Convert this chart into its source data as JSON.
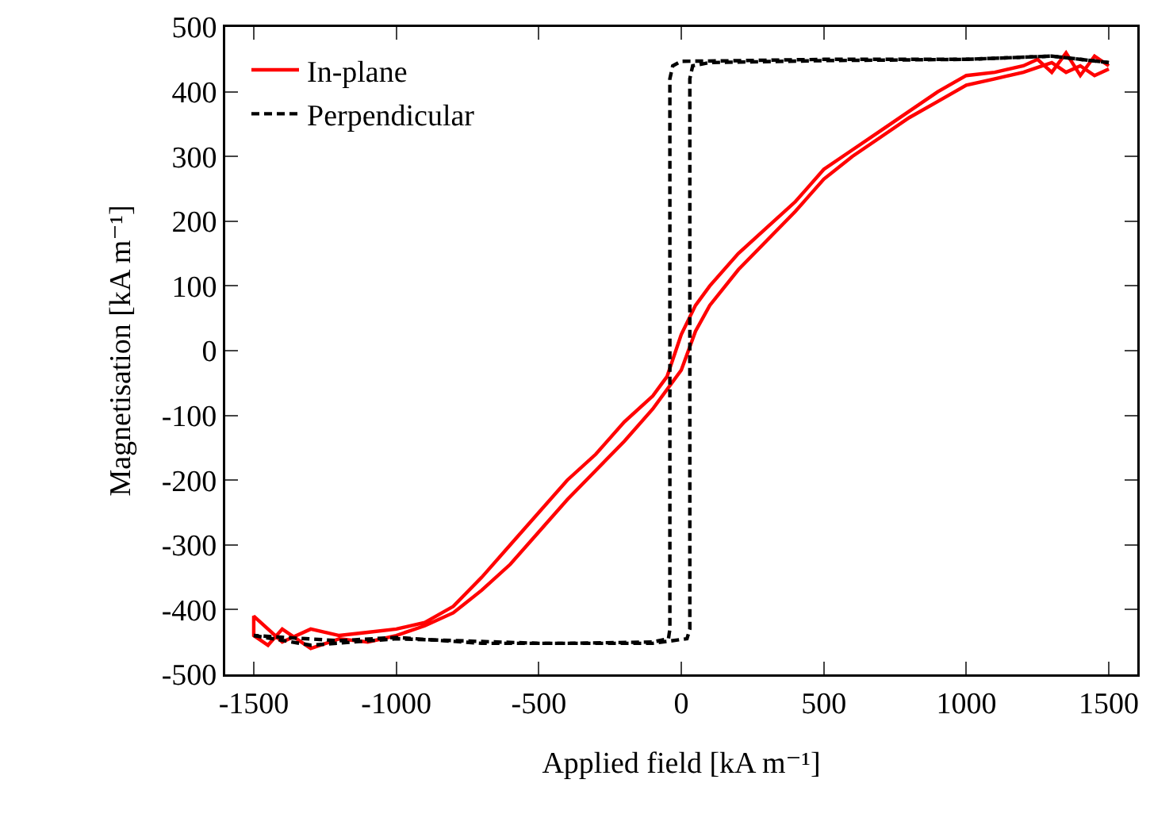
{
  "chart_data": {
    "type": "line",
    "xlabel": "Applied field [kA m⁻¹]",
    "ylabel": "Magnetisation [kA m⁻¹]",
    "series": [
      {
        "name": "In-plane",
        "color": "#ff0000",
        "line_style": "solid",
        "x": [
          1500,
          1450,
          1400,
          1350,
          1300,
          1250,
          1200,
          1100,
          1000,
          900,
          800,
          700,
          600,
          500,
          400,
          300,
          200,
          100,
          50,
          0,
          -50,
          -100,
          -200,
          -300,
          -400,
          -500,
          -600,
          -700,
          -800,
          -900,
          -1000,
          -1100,
          -1200,
          -1300,
          -1400,
          -1500,
          -1500,
          -1450,
          -1400,
          -1300,
          -1200,
          -1100,
          -1000,
          -900,
          -800,
          -700,
          -600,
          -500,
          -400,
          -300,
          -200,
          -100,
          0,
          50,
          100,
          200,
          300,
          400,
          500,
          600,
          700,
          800,
          900,
          1000,
          1100,
          1200,
          1300,
          1350,
          1400,
          1450,
          1500
        ],
        "values": [
          440,
          455,
          425,
          460,
          430,
          450,
          440,
          430,
          425,
          400,
          370,
          340,
          310,
          280,
          230,
          190,
          150,
          100,
          70,
          25,
          -40,
          -70,
          -110,
          -160,
          -200,
          -250,
          -300,
          -350,
          -395,
          -420,
          -430,
          -435,
          -440,
          -430,
          -450,
          -410,
          -440,
          -455,
          -430,
          -460,
          -445,
          -450,
          -440,
          -425,
          -405,
          -370,
          -330,
          -280,
          -230,
          -185,
          -140,
          -90,
          -30,
          30,
          70,
          125,
          170,
          215,
          265,
          300,
          330,
          360,
          385,
          410,
          420,
          430,
          445,
          430,
          440,
          425,
          435
        ]
      },
      {
        "name": "Perpendicular",
        "color": "#000000",
        "line_style": "dashed",
        "x": [
          1500,
          1300,
          1000,
          500,
          200,
          0,
          -30,
          -40,
          -40,
          -45,
          -100,
          -400,
          -700,
          -1000,
          -1200,
          -1500
        ],
        "values": [
          445,
          455,
          450,
          450,
          448,
          447,
          440,
          420,
          -430,
          -445,
          -450,
          -452,
          -452,
          -443,
          -448,
          -440
        ]
      },
      {
        "color": "#000000",
        "line_style": "dashed",
        "x": [
          -1500,
          -1300,
          -1000,
          -500,
          -100,
          20,
          30,
          30,
          40,
          100,
          500,
          1000,
          1300,
          1500
        ],
        "values": [
          -440,
          -455,
          -445,
          -452,
          -452,
          -445,
          -430,
          420,
          440,
          445,
          448,
          450,
          455,
          445
        ]
      }
    ],
    "xlim": [
      -1600,
      1600
    ],
    "xticks": [
      -1500,
      -1000,
      -500,
      0,
      500,
      1000,
      1500
    ],
    "ylim": [
      -500,
      500
    ],
    "yticks": [
      -500,
      -400,
      -300,
      -200,
      -100,
      0,
      100,
      200,
      300,
      400,
      500
    ],
    "grid": false,
    "legend": "top left",
    "marker": "none"
  }
}
